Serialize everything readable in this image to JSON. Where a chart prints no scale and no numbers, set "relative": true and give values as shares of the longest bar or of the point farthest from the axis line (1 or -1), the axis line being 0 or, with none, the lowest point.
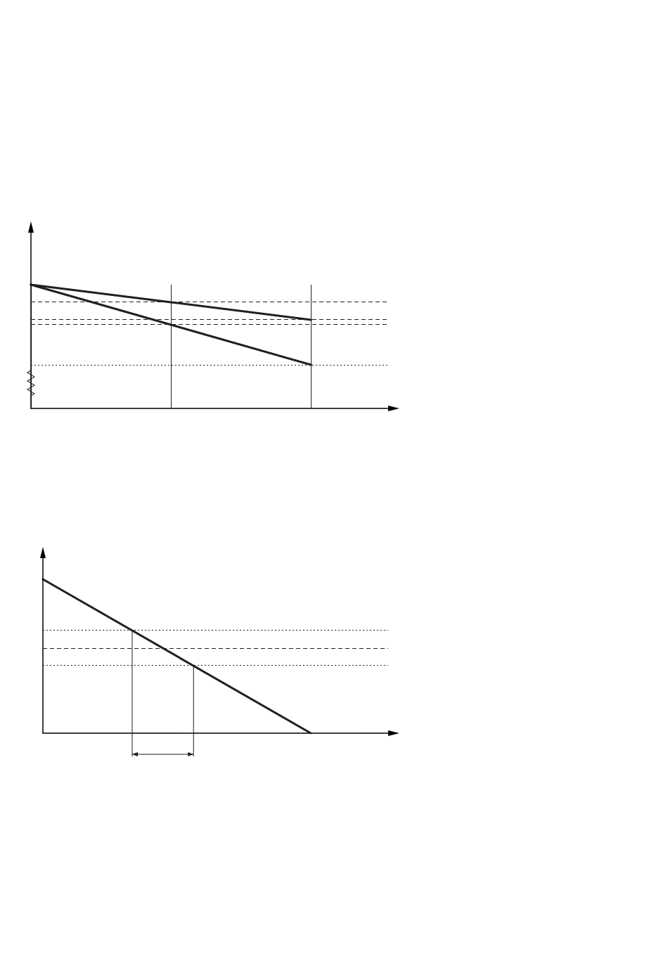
{
  "chart_data": [
    {
      "type": "line",
      "relative": true,
      "categories": [
        null,
        null,
        null
      ],
      "tick_labels": false,
      "grid": "x",
      "marker": "none",
      "line_style": "solid",
      "series": [
        {
          "color": "#231f20",
          "values": [
            1,
            0.858,
            0.716
          ]
        },
        {
          "color": "#231f20",
          "values": [
            1,
            0.676,
            0.352
          ]
        }
      ],
      "ref_lines": [
        {
          "axis": "y",
          "value": 0.858,
          "line_style": "dashed"
        },
        {
          "axis": "y",
          "value": 0.722,
          "line_style": "dashed"
        },
        {
          "axis": "y",
          "value": 0.676,
          "line_style": "dashed"
        },
        {
          "axis": "y",
          "value": 0.352,
          "line_style": "dotted"
        }
      ]
    },
    {
      "type": "line",
      "relative": true,
      "categories": [
        null,
        null,
        null,
        null,
        null,
        null,
        null,
        null,
        null,
        null
      ],
      "tick_labels": false,
      "marker": "none",
      "line_style": "solid",
      "series": [
        {
          "color": "#231f20",
          "values": [
            1,
            null,
            null,
            null,
            null,
            null,
            null,
            null,
            null,
            0
          ]
        }
      ],
      "ref_lines": [
        {
          "axis": "y",
          "value": 0.667,
          "line_style": "dotted"
        },
        {
          "axis": "y",
          "value": 0.553,
          "line_style": "dashed"
        },
        {
          "axis": "y",
          "value": 0.438,
          "line_style": "dotted"
        }
      ]
    }
  ]
}
